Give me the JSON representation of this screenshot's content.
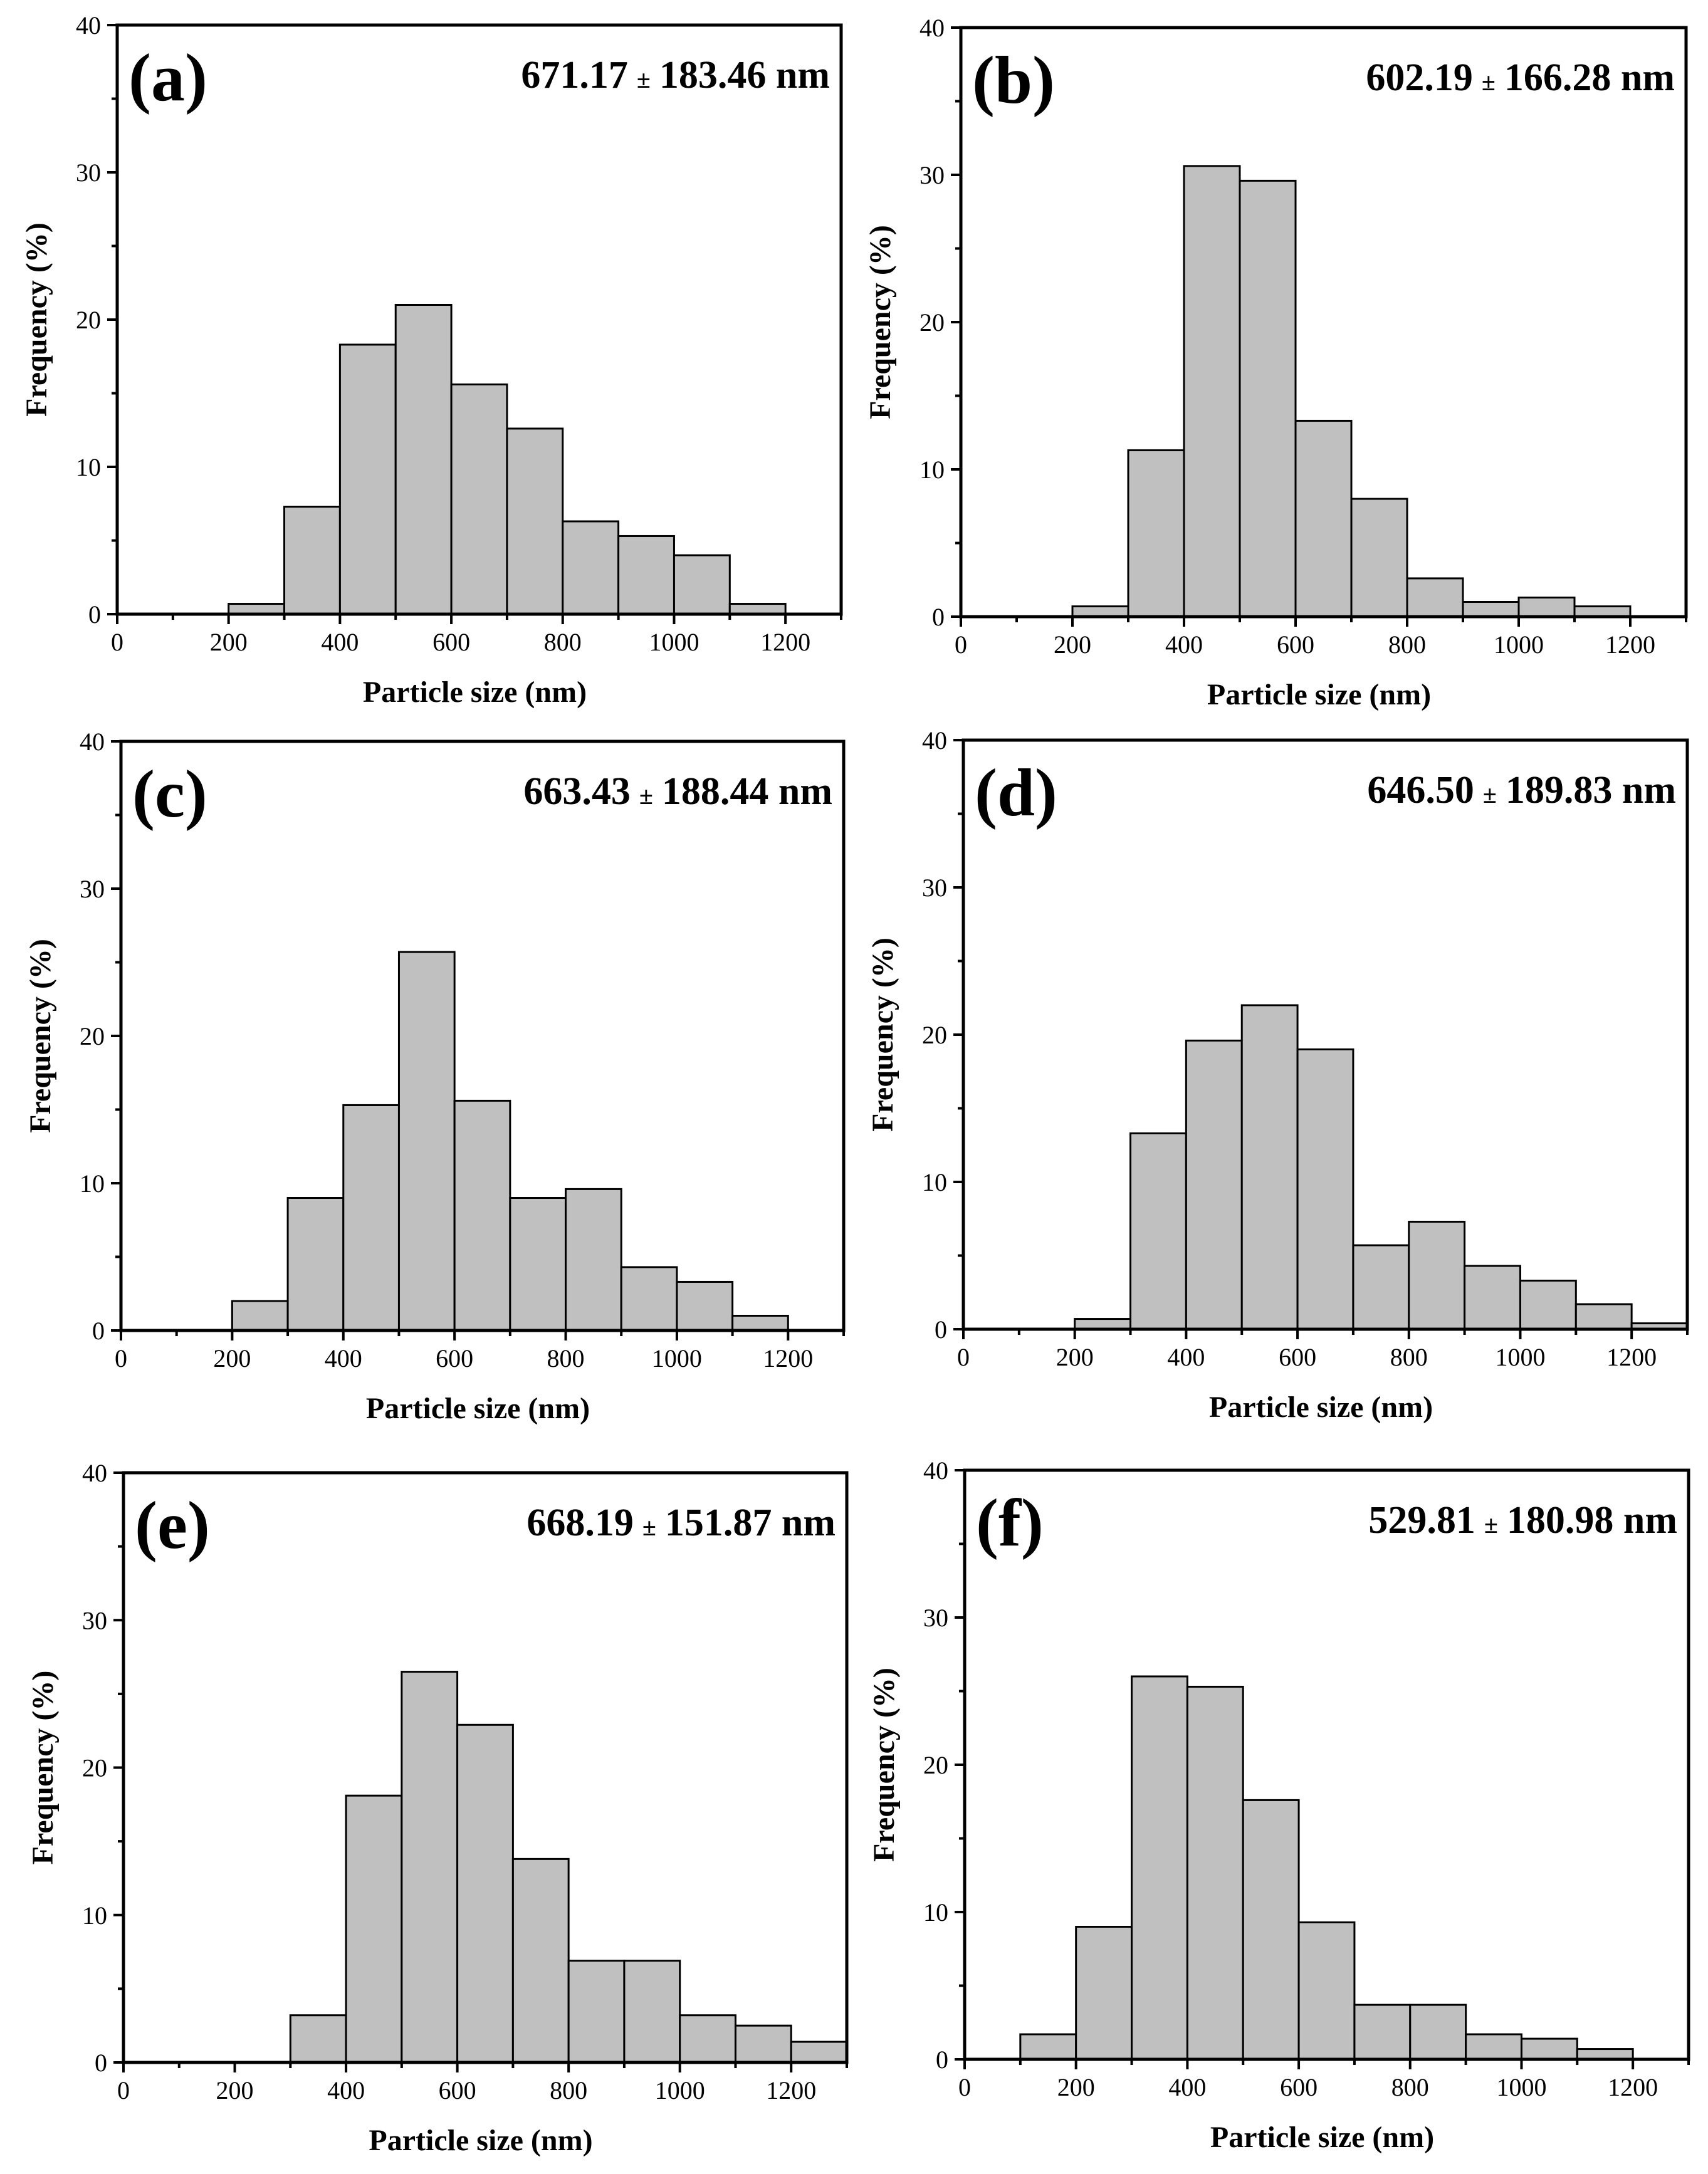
{
  "figure": {
    "xlabel": "Particle size (nm)",
    "ylabel": "Frequency (%)"
  },
  "chart_data": [
    {
      "type": "bar",
      "panel": "(a)",
      "stat_mean": "671.17",
      "stat_pm": "±",
      "stat_rest": "183.46 nm",
      "xlabel": "Particle size (nm)",
      "ylabel": "Frequency (%)",
      "xlim": [
        0,
        1300
      ],
      "ylim": [
        0,
        40
      ],
      "xticks": [
        0,
        200,
        400,
        600,
        800,
        1000,
        1200
      ],
      "yticks": [
        0,
        10,
        20,
        30,
        40
      ],
      "bin_width": 100,
      "bins": [
        200,
        300,
        400,
        500,
        600,
        700,
        800,
        900,
        1000,
        1100
      ],
      "values": [
        0.7,
        7.3,
        18.3,
        21.0,
        15.6,
        12.6,
        6.3,
        5.3,
        4.0,
        0.7
      ]
    },
    {
      "type": "bar",
      "panel": "(b)",
      "stat_mean": "602.19",
      "stat_pm": "±",
      "stat_rest": "166.28 nm",
      "xlabel": "Particle size (nm)",
      "ylabel": "Frequency (%)",
      "xlim": [
        0,
        1300
      ],
      "ylim": [
        0,
        40
      ],
      "xticks": [
        0,
        200,
        400,
        600,
        800,
        1000,
        1200
      ],
      "yticks": [
        0,
        10,
        20,
        30,
        40
      ],
      "bin_width": 100,
      "bins": [
        200,
        300,
        400,
        500,
        600,
        700,
        800,
        900,
        1000,
        1100
      ],
      "values": [
        0.7,
        11.3,
        30.6,
        29.6,
        13.3,
        8.0,
        2.6,
        1.0,
        1.3,
        0.7
      ]
    },
    {
      "type": "bar",
      "panel": "(c)",
      "stat_mean": "663.43",
      "stat_pm": "±",
      "stat_rest": "188.44 nm",
      "xlabel": "Particle size (nm)",
      "ylabel": "Frequency (%)",
      "xlim": [
        0,
        1300
      ],
      "ylim": [
        0,
        40
      ],
      "xticks": [
        0,
        200,
        400,
        600,
        800,
        1000,
        1200
      ],
      "yticks": [
        0,
        10,
        20,
        30,
        40
      ],
      "bin_width": 100,
      "bins": [
        200,
        300,
        400,
        500,
        600,
        700,
        800,
        900,
        1000,
        1100
      ],
      "values": [
        2.0,
        9.0,
        15.3,
        25.7,
        15.6,
        9.0,
        9.6,
        4.3,
        3.3,
        1.0
      ]
    },
    {
      "type": "bar",
      "panel": "(d)",
      "stat_mean": "646.50",
      "stat_pm": "±",
      "stat_rest": "189.83 nm",
      "xlabel": "Particle size (nm)",
      "ylabel": "Frequency (%)",
      "xlim": [
        0,
        1300
      ],
      "ylim": [
        0,
        40
      ],
      "xticks": [
        0,
        200,
        400,
        600,
        800,
        1000,
        1200
      ],
      "yticks": [
        0,
        10,
        20,
        30,
        40
      ],
      "bin_width": 100,
      "bins": [
        200,
        300,
        400,
        500,
        600,
        700,
        800,
        900,
        1000,
        1100,
        1200
      ],
      "values": [
        0.7,
        13.3,
        19.6,
        22.0,
        19.0,
        5.7,
        7.3,
        4.3,
        3.3,
        1.7,
        0.4
      ]
    },
    {
      "type": "bar",
      "panel": "(e)",
      "stat_mean": "668.19",
      "stat_pm": "±",
      "stat_rest": "151.87 nm",
      "xlabel": "Particle size (nm)",
      "ylabel": "Frequency (%)",
      "xlim": [
        0,
        1300
      ],
      "ylim": [
        0,
        40
      ],
      "xticks": [
        0,
        200,
        400,
        600,
        800,
        1000,
        1200
      ],
      "yticks": [
        0,
        10,
        20,
        30,
        40
      ],
      "bin_width": 100,
      "bins": [
        300,
        400,
        500,
        600,
        700,
        800,
        900,
        1000,
        1100,
        1200
      ],
      "values": [
        3.2,
        18.1,
        26.5,
        22.9,
        13.8,
        6.9,
        6.9,
        3.2,
        2.5,
        1.4
      ]
    },
    {
      "type": "bar",
      "panel": "(f)",
      "stat_mean": "529.81",
      "stat_pm": "±",
      "stat_rest": "180.98 nm",
      "xlabel": "Particle size (nm)",
      "ylabel": "Frequency (%)",
      "xlim": [
        0,
        1300
      ],
      "ylim": [
        0,
        40
      ],
      "xticks": [
        0,
        200,
        400,
        600,
        800,
        1000,
        1200
      ],
      "yticks": [
        0,
        10,
        20,
        30,
        40
      ],
      "bin_width": 100,
      "bins": [
        100,
        200,
        300,
        400,
        500,
        600,
        700,
        800,
        900,
        1000,
        1100
      ],
      "values": [
        1.7,
        9.0,
        26.0,
        25.3,
        17.6,
        9.3,
        3.7,
        3.7,
        1.7,
        1.4,
        0.7
      ]
    }
  ]
}
